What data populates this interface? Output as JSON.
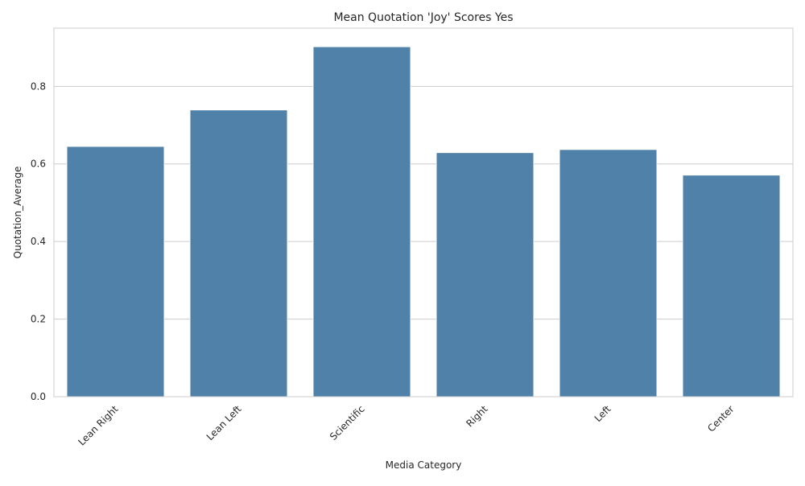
{
  "chart_data": {
    "type": "bar",
    "title": "Mean Quotation 'Joy' Scores Yes",
    "xlabel": "Media Category",
    "ylabel": "Quotation_Average",
    "categories": [
      "Lean Right",
      "Lean Left",
      "Scientific",
      "Right",
      "Left",
      "Center"
    ],
    "values": [
      0.645,
      0.739,
      0.902,
      0.629,
      0.637,
      0.571
    ],
    "ylim": [
      0,
      0.95
    ],
    "yticks": [
      "0.0",
      "0.2",
      "0.4",
      "0.6",
      "0.8"
    ],
    "grid": true,
    "bar_color": "#4f81a9",
    "grid_color": "#cccccc",
    "spine_color": "#cccccc"
  }
}
